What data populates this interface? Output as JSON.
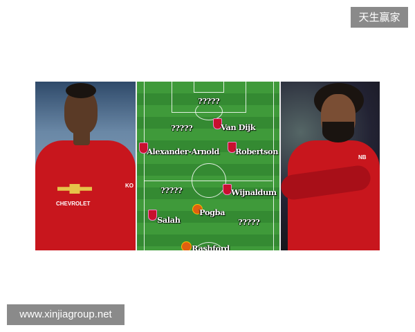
{
  "watermarks": {
    "top_right": "天生赢家",
    "bottom_left": "www.xinjiagroup.net"
  },
  "left_photo": {
    "sponsor": "CHEVROLET",
    "kit_text": "KO"
  },
  "right_photo": {
    "kit_text": "NB"
  },
  "pitch": {
    "players": [
      {
        "name": "?????",
        "club": "unknown"
      },
      {
        "name": "?????",
        "club": "unknown"
      },
      {
        "name": "Van Dijk",
        "club": "liverpool"
      },
      {
        "name": "Alexander-Arnold",
        "club": "liverpool"
      },
      {
        "name": "Robertson",
        "club": "liverpool"
      },
      {
        "name": "?????",
        "club": "unknown"
      },
      {
        "name": "Wijnaldum",
        "club": "liverpool"
      },
      {
        "name": "Pogba",
        "club": "manchester-united"
      },
      {
        "name": "Salah",
        "club": "liverpool"
      },
      {
        "name": "?????",
        "club": "unknown"
      },
      {
        "name": "Rashford",
        "club": "manchester-united"
      }
    ]
  },
  "colors": {
    "pitch_green": "#3f9a3a",
    "liverpool_red": "#c8102e",
    "united_red": "#c8161d",
    "watermark_bg": "#8a8a8a"
  }
}
